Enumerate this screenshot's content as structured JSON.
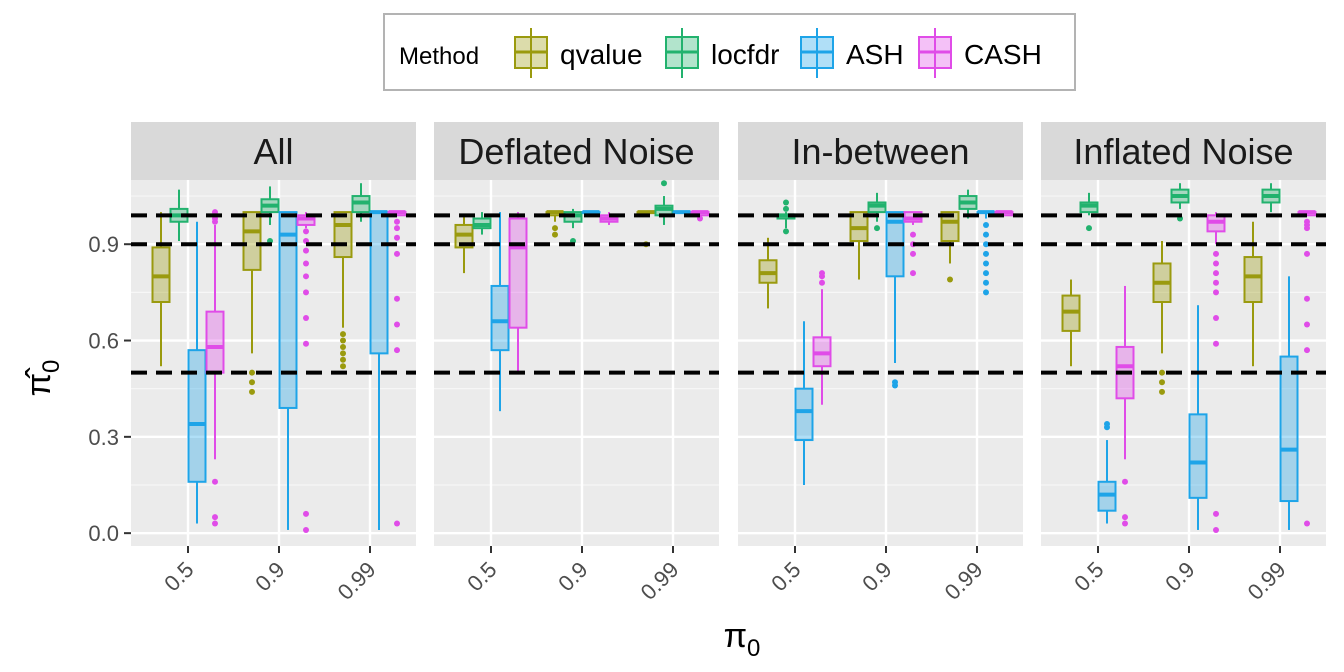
{
  "chart_data": {
    "type": "boxplot",
    "xlabel": "π0",
    "ylabel": "π̂0",
    "ylim": [
      -0.04,
      1.1
    ],
    "y_ticks": [
      0.0,
      0.3,
      0.6,
      0.9
    ],
    "y_tick_labels": [
      "0.0",
      "0.3",
      "0.6",
      "0.9"
    ],
    "categories": [
      "0.5",
      "0.9",
      "0.99"
    ],
    "reference_lines": [
      0.5,
      0.9,
      0.99
    ],
    "legend": {
      "title": "Method",
      "placement": "top",
      "entries": [
        "qvalue",
        "locfdr",
        "ASH",
        "CASH"
      ]
    },
    "series_colors": {
      "qvalue": "#9a9a0e",
      "locfdr": "#22b26e",
      "ASH": "#1ea4e8",
      "CASH": "#e04ce8"
    },
    "panels": [
      {
        "title": "All",
        "boxes": [
          {
            "category": "0.5",
            "method": "qvalue",
            "whislo": 0.52,
            "q1": 0.72,
            "med": 0.8,
            "q3": 0.89,
            "whishi": 1.0,
            "outliers": []
          },
          {
            "category": "0.5",
            "method": "locfdr",
            "whislo": 0.91,
            "q1": 0.97,
            "med": 0.99,
            "q3": 1.01,
            "whishi": 1.07,
            "outliers": []
          },
          {
            "category": "0.5",
            "method": "ASH",
            "whislo": 0.03,
            "q1": 0.16,
            "med": 0.34,
            "q3": 0.57,
            "whishi": 0.97,
            "outliers": []
          },
          {
            "category": "0.5",
            "method": "CASH",
            "whislo": 0.23,
            "q1": 0.5,
            "med": 0.58,
            "q3": 0.69,
            "whishi": 0.96,
            "outliers": [
              0.03,
              0.05,
              0.16,
              0.97,
              0.98,
              0.99,
              1.0
            ]
          },
          {
            "category": "0.9",
            "method": "qvalue",
            "whislo": 0.56,
            "q1": 0.82,
            "med": 0.94,
            "q3": 1.0,
            "whishi": 1.0,
            "outliers": [
              0.44,
              0.47,
              0.5
            ]
          },
          {
            "category": "0.9",
            "method": "locfdr",
            "whislo": 0.96,
            "q1": 1.0,
            "med": 1.02,
            "q3": 1.04,
            "whishi": 1.08,
            "outliers": [
              0.91
            ]
          },
          {
            "category": "0.9",
            "method": "ASH",
            "whislo": 0.01,
            "q1": 0.39,
            "med": 0.93,
            "q3": 1.0,
            "whishi": 1.0,
            "outliers": []
          },
          {
            "category": "0.9",
            "method": "CASH",
            "whislo": 0.95,
            "q1": 0.96,
            "med": 0.98,
            "q3": 0.99,
            "whishi": 1.0,
            "outliers": [
              0.01,
              0.06,
              0.59,
              0.67,
              0.75,
              0.8,
              0.84,
              0.88,
              0.91,
              0.94
            ]
          },
          {
            "category": "0.99",
            "method": "qvalue",
            "whislo": 0.64,
            "q1": 0.86,
            "med": 0.96,
            "q3": 1.0,
            "whishi": 1.0,
            "outliers": [
              0.52,
              0.54,
              0.56,
              0.58,
              0.6,
              0.62
            ]
          },
          {
            "category": "0.99",
            "method": "locfdr",
            "whislo": 0.97,
            "q1": 1.0,
            "med": 1.03,
            "q3": 1.05,
            "whishi": 1.09,
            "outliers": []
          },
          {
            "category": "0.99",
            "method": "ASH",
            "whislo": 0.01,
            "q1": 0.56,
            "med": 1.0,
            "q3": 1.0,
            "whishi": 1.0,
            "outliers": []
          },
          {
            "category": "0.99",
            "method": "CASH",
            "whislo": 0.99,
            "q1": 0.99,
            "med": 1.0,
            "q3": 1.0,
            "whishi": 1.0,
            "outliers": [
              0.03,
              0.57,
              0.65,
              0.73,
              0.87,
              0.92,
              0.95,
              0.97
            ]
          }
        ]
      },
      {
        "title": "Deflated Noise",
        "boxes": [
          {
            "category": "0.5",
            "method": "qvalue",
            "whislo": 0.81,
            "q1": 0.89,
            "med": 0.93,
            "q3": 0.96,
            "whishi": 0.99,
            "outliers": []
          },
          {
            "category": "0.5",
            "method": "locfdr",
            "whislo": 0.93,
            "q1": 0.95,
            "med": 0.96,
            "q3": 0.98,
            "whishi": 1.0,
            "outliers": []
          },
          {
            "category": "0.5",
            "method": "ASH",
            "whislo": 0.38,
            "q1": 0.57,
            "med": 0.66,
            "q3": 0.77,
            "whishi": 1.0,
            "outliers": []
          },
          {
            "category": "0.5",
            "method": "CASH",
            "whislo": 0.5,
            "q1": 0.64,
            "med": 0.89,
            "q3": 0.98,
            "whishi": 1.0,
            "outliers": []
          },
          {
            "category": "0.9",
            "method": "qvalue",
            "whislo": 0.97,
            "q1": 0.99,
            "med": 1.0,
            "q3": 1.0,
            "whishi": 1.0,
            "outliers": [
              0.93,
              0.95
            ]
          },
          {
            "category": "0.9",
            "method": "locfdr",
            "whislo": 0.95,
            "q1": 0.97,
            "med": 0.99,
            "q3": 1.0,
            "whishi": 1.01,
            "outliers": [
              0.91
            ]
          },
          {
            "category": "0.9",
            "method": "ASH",
            "whislo": 0.99,
            "q1": 1.0,
            "med": 1.0,
            "q3": 1.0,
            "whishi": 1.0,
            "outliers": []
          },
          {
            "category": "0.9",
            "method": "CASH",
            "whislo": 0.96,
            "q1": 0.97,
            "med": 0.98,
            "q3": 0.99,
            "whishi": 1.0,
            "outliers": []
          },
          {
            "category": "0.99",
            "method": "qvalue",
            "whislo": 0.99,
            "q1": 1.0,
            "med": 1.0,
            "q3": 1.0,
            "whishi": 1.0,
            "outliers": [
              0.9
            ]
          },
          {
            "category": "0.99",
            "method": "locfdr",
            "whislo": 0.96,
            "q1": 0.99,
            "med": 1.01,
            "q3": 1.02,
            "whishi": 1.05,
            "outliers": [
              1.09
            ]
          },
          {
            "category": "0.99",
            "method": "ASH",
            "whislo": 1.0,
            "q1": 1.0,
            "med": 1.0,
            "q3": 1.0,
            "whishi": 1.0,
            "outliers": []
          },
          {
            "category": "0.99",
            "method": "CASH",
            "whislo": 0.99,
            "q1": 0.99,
            "med": 1.0,
            "q3": 1.0,
            "whishi": 1.0,
            "outliers": [
              0.98
            ]
          }
        ]
      },
      {
        "title": "In-between",
        "boxes": [
          {
            "category": "0.5",
            "method": "qvalue",
            "whislo": 0.7,
            "q1": 0.78,
            "med": 0.81,
            "q3": 0.85,
            "whishi": 0.92,
            "outliers": []
          },
          {
            "category": "0.5",
            "method": "locfdr",
            "whislo": 0.95,
            "q1": 0.98,
            "med": 0.99,
            "q3": 0.99,
            "whishi": 1.0,
            "outliers": [
              0.94,
              1.01,
              1.03
            ]
          },
          {
            "category": "0.5",
            "method": "ASH",
            "whislo": 0.15,
            "q1": 0.29,
            "med": 0.38,
            "q3": 0.45,
            "whishi": 0.66,
            "outliers": []
          },
          {
            "category": "0.5",
            "method": "CASH",
            "whislo": 0.4,
            "q1": 0.52,
            "med": 0.56,
            "q3": 0.61,
            "whishi": 0.76,
            "outliers": [
              0.78,
              0.8,
              0.81
            ]
          },
          {
            "category": "0.9",
            "method": "qvalue",
            "whislo": 0.79,
            "q1": 0.91,
            "med": 0.95,
            "q3": 1.0,
            "whishi": 1.0,
            "outliers": []
          },
          {
            "category": "0.9",
            "method": "locfdr",
            "whislo": 0.97,
            "q1": 1.0,
            "med": 1.02,
            "q3": 1.03,
            "whishi": 1.06,
            "outliers": [
              0.95
            ]
          },
          {
            "category": "0.9",
            "method": "ASH",
            "whislo": 0.53,
            "q1": 0.8,
            "med": 0.97,
            "q3": 1.0,
            "whishi": 1.0,
            "outliers": [
              0.46,
              0.47
            ]
          },
          {
            "category": "0.9",
            "method": "CASH",
            "whislo": 0.96,
            "q1": 0.97,
            "med": 0.98,
            "q3": 1.0,
            "whishi": 1.0,
            "outliers": [
              0.81,
              0.87,
              0.9,
              0.93
            ]
          },
          {
            "category": "0.99",
            "method": "qvalue",
            "whislo": 0.84,
            "q1": 0.91,
            "med": 0.97,
            "q3": 1.0,
            "whishi": 1.0,
            "outliers": [
              0.79
            ]
          },
          {
            "category": "0.99",
            "method": "locfdr",
            "whislo": 0.98,
            "q1": 1.01,
            "med": 1.03,
            "q3": 1.05,
            "whishi": 1.07,
            "outliers": []
          },
          {
            "category": "0.99",
            "method": "ASH",
            "whislo": 0.98,
            "q1": 1.0,
            "med": 1.0,
            "q3": 1.0,
            "whishi": 1.0,
            "outliers": [
              0.75,
              0.78,
              0.81,
              0.84,
              0.87,
              0.9,
              0.93,
              0.96
            ]
          },
          {
            "category": "0.99",
            "method": "CASH",
            "whislo": 0.99,
            "q1": 0.99,
            "med": 1.0,
            "q3": 1.0,
            "whishi": 1.0,
            "outliers": []
          }
        ]
      },
      {
        "title": "Inflated Noise",
        "boxes": [
          {
            "category": "0.5",
            "method": "qvalue",
            "whislo": 0.52,
            "q1": 0.63,
            "med": 0.69,
            "q3": 0.74,
            "whishi": 0.79,
            "outliers": []
          },
          {
            "category": "0.5",
            "method": "locfdr",
            "whislo": 0.99,
            "q1": 1.0,
            "med": 1.02,
            "q3": 1.03,
            "whishi": 1.06,
            "outliers": [
              0.95
            ]
          },
          {
            "category": "0.5",
            "method": "ASH",
            "whislo": 0.03,
            "q1": 0.07,
            "med": 0.12,
            "q3": 0.16,
            "whishi": 0.29,
            "outliers": [
              0.33,
              0.34
            ]
          },
          {
            "category": "0.5",
            "method": "CASH",
            "whislo": 0.23,
            "q1": 0.42,
            "med": 0.52,
            "q3": 0.58,
            "whishi": 0.77,
            "outliers": [
              0.03,
              0.05,
              0.16
            ]
          },
          {
            "category": "0.9",
            "method": "qvalue",
            "whislo": 0.56,
            "q1": 0.72,
            "med": 0.78,
            "q3": 0.84,
            "whishi": 0.91,
            "outliers": [
              0.44,
              0.47,
              0.5
            ]
          },
          {
            "category": "0.9",
            "method": "locfdr",
            "whislo": 1.01,
            "q1": 1.03,
            "med": 1.05,
            "q3": 1.07,
            "whishi": 1.09,
            "outliers": [
              0.98
            ]
          },
          {
            "category": "0.9",
            "method": "ASH",
            "whislo": 0.01,
            "q1": 0.11,
            "med": 0.22,
            "q3": 0.37,
            "whishi": 0.71,
            "outliers": []
          },
          {
            "category": "0.9",
            "method": "CASH",
            "whislo": 0.9,
            "q1": 0.94,
            "med": 0.97,
            "q3": 0.99,
            "whishi": 1.0,
            "outliers": [
              0.01,
              0.06,
              0.59,
              0.67,
              0.75,
              0.78,
              0.81,
              0.84,
              0.87
            ]
          },
          {
            "category": "0.99",
            "method": "qvalue",
            "whislo": 0.52,
            "q1": 0.72,
            "med": 0.8,
            "q3": 0.86,
            "whishi": 0.97,
            "outliers": []
          },
          {
            "category": "0.99",
            "method": "locfdr",
            "whislo": 1.0,
            "q1": 1.03,
            "med": 1.05,
            "q3": 1.07,
            "whishi": 1.09,
            "outliers": []
          },
          {
            "category": "0.99",
            "method": "ASH",
            "whislo": 0.01,
            "q1": 0.1,
            "med": 0.26,
            "q3": 0.55,
            "whishi": 0.8,
            "outliers": []
          },
          {
            "category": "0.99",
            "method": "CASH",
            "whislo": 0.99,
            "q1": 0.99,
            "med": 1.0,
            "q3": 1.0,
            "whishi": 1.0,
            "outliers": [
              0.03,
              0.57,
              0.65,
              0.73,
              0.87,
              0.95,
              0.96,
              0.97
            ]
          }
        ]
      }
    ]
  }
}
